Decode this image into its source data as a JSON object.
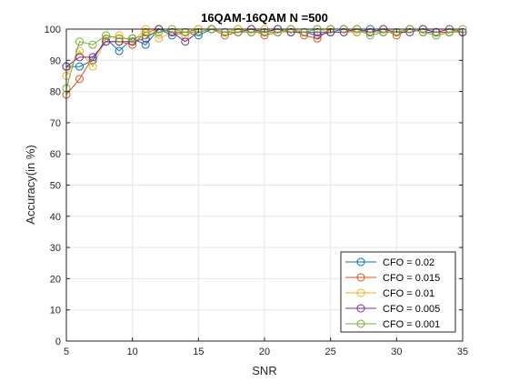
{
  "chart_data": {
    "type": "line",
    "title": "16QAM-16QAM N =500",
    "xlabel": "SNR",
    "ylabel": "Accuracy(in %)",
    "xlim": [
      5,
      35
    ],
    "ylim": [
      0,
      100
    ],
    "xticks": [
      5,
      10,
      15,
      20,
      25,
      30,
      35
    ],
    "yticks": [
      0,
      10,
      20,
      30,
      40,
      50,
      60,
      70,
      80,
      90,
      100
    ],
    "grid": true,
    "legend_position": "bottom-right",
    "marker": "circle",
    "x": [
      5,
      6,
      7,
      8,
      9,
      10,
      11,
      12,
      13,
      14,
      15,
      16,
      17,
      18,
      19,
      20,
      21,
      22,
      23,
      24,
      25,
      26,
      27,
      28,
      29,
      30,
      31,
      32,
      33,
      34,
      35
    ],
    "series": [
      {
        "name": "CFO = 0.02",
        "color": "#0072BD",
        "values": [
          88,
          88,
          90,
          97,
          93,
          97,
          95,
          100,
          98,
          99,
          98,
          100,
          99,
          100,
          99,
          99,
          100,
          99,
          99,
          99,
          99,
          100,
          99,
          100,
          99,
          99,
          100,
          99,
          99,
          99,
          99
        ]
      },
      {
        "name": "CFO = 0.015",
        "color": "#D95319",
        "values": [
          79,
          84,
          91,
          96,
          96,
          95,
          99,
          100,
          99,
          99,
          100,
          100,
          98,
          99,
          100,
          98,
          99,
          100,
          98,
          97,
          100,
          100,
          99,
          99,
          100,
          98,
          100,
          100,
          99,
          99,
          99
        ]
      },
      {
        "name": "CFO = 0.01",
        "color": "#EDB120",
        "values": [
          85,
          93,
          88,
          97,
          98,
          96,
          100,
          97,
          99,
          98,
          100,
          100,
          99,
          100,
          99,
          100,
          99,
          99,
          99,
          100,
          99,
          99,
          99,
          99,
          99,
          99,
          100,
          99,
          98,
          99,
          99
        ]
      },
      {
        "name": "CFO = 0.005",
        "color": "#7E2F8E",
        "values": [
          88,
          91,
          91,
          96,
          96,
          96,
          97,
          100,
          99,
          96,
          99,
          100,
          99,
          99,
          100,
          99,
          100,
          99,
          99,
          98,
          99,
          99,
          100,
          99,
          100,
          99,
          99,
          100,
          99,
          100,
          99
        ]
      },
      {
        "name": "CFO = 0.001",
        "color": "#77AC30",
        "values": [
          81,
          96,
          95,
          98,
          97,
          97,
          98,
          99,
          100,
          99,
          99,
          100,
          99,
          99,
          99,
          99,
          99,
          100,
          99,
          100,
          100,
          100,
          100,
          98,
          99,
          99,
          100,
          99,
          98,
          99,
          100
        ]
      }
    ]
  }
}
